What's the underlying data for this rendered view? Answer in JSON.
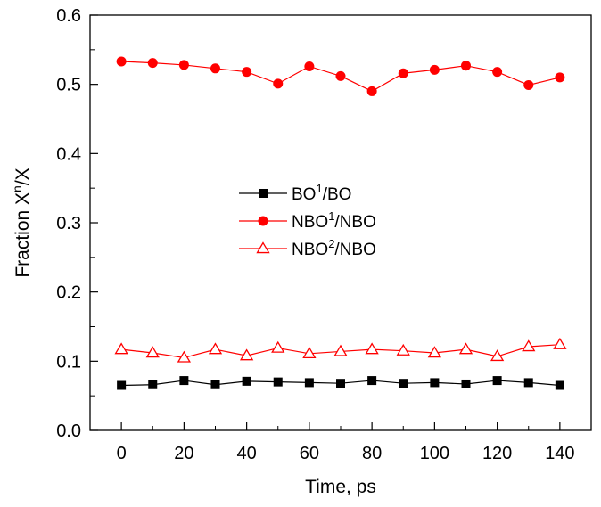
{
  "chart_data": {
    "type": "line",
    "xlabel": "Time, ps",
    "ylabel": {
      "base": "Fraction X",
      "sup": "n",
      "tail": "/X"
    },
    "xlim": [
      -10,
      150
    ],
    "ylim": [
      0.0,
      0.6
    ],
    "x_ticks": [
      0,
      20,
      40,
      60,
      80,
      100,
      120,
      140
    ],
    "x_tick_labels": [
      "0",
      "20",
      "40",
      "60",
      "80",
      "100",
      "120",
      "140"
    ],
    "y_ticks": [
      0.0,
      0.1,
      0.2,
      0.3,
      0.4,
      0.5,
      0.6
    ],
    "y_tick_labels": [
      "0.0",
      "0.1",
      "0.2",
      "0.3",
      "0.4",
      "0.5",
      "0.6"
    ],
    "grid": false,
    "legend_position": "center-left",
    "x": [
      0,
      10,
      20,
      30,
      40,
      50,
      60,
      70,
      80,
      90,
      100,
      110,
      120,
      130,
      140
    ],
    "series": [
      {
        "name": {
          "base": "BO",
          "sup": "1",
          "tail": "/BO"
        },
        "color": "#000000",
        "marker": "square-filled",
        "values": [
          0.065,
          0.066,
          0.072,
          0.066,
          0.071,
          0.07,
          0.069,
          0.068,
          0.072,
          0.068,
          0.069,
          0.067,
          0.072,
          0.069,
          0.065
        ]
      },
      {
        "name": {
          "base": "NBO",
          "sup": "1",
          "tail": "/NBO"
        },
        "color": "#ff0000",
        "marker": "circle-filled",
        "values": [
          0.533,
          0.531,
          0.528,
          0.523,
          0.518,
          0.501,
          0.526,
          0.512,
          0.49,
          0.516,
          0.521,
          0.527,
          0.518,
          0.499,
          0.51
        ]
      },
      {
        "name": {
          "base": "NBO",
          "sup": "2",
          "tail": "/NBO"
        },
        "color": "#ff0000",
        "marker": "triangle-open",
        "values": [
          0.117,
          0.112,
          0.105,
          0.117,
          0.108,
          0.119,
          0.111,
          0.114,
          0.117,
          0.115,
          0.112,
          0.117,
          0.107,
          0.121,
          0.124
        ]
      }
    ]
  }
}
